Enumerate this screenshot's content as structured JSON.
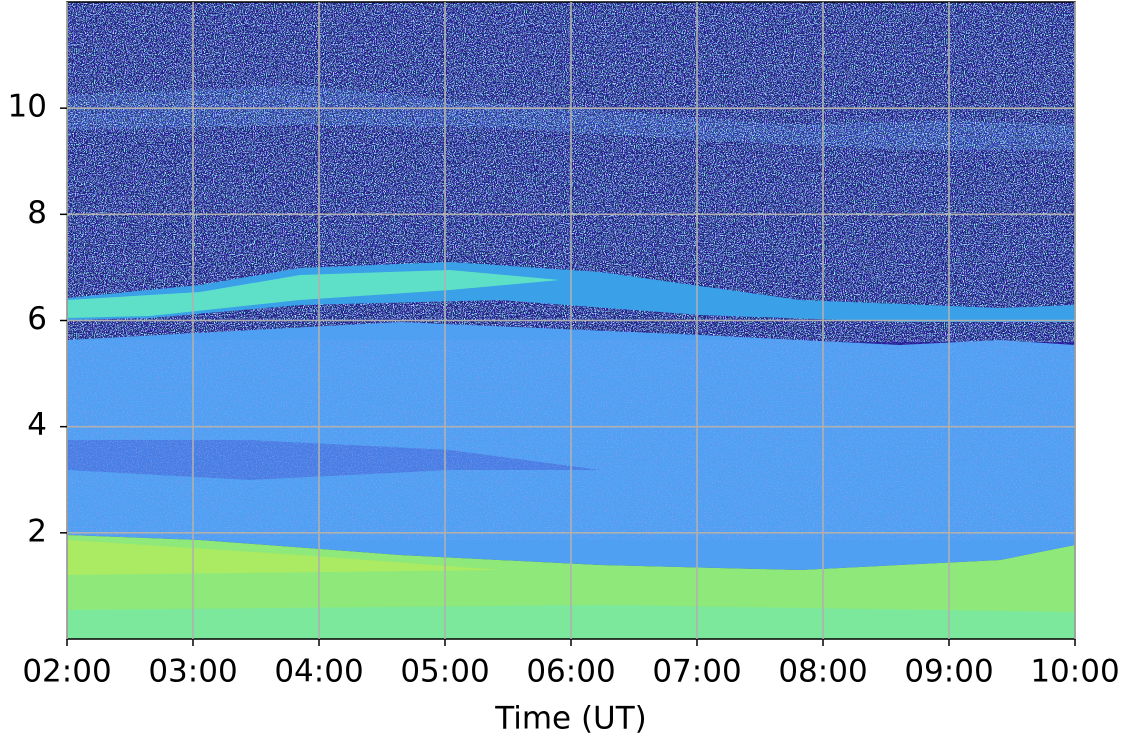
{
  "chart_data": {
    "type": "heatmap",
    "x_label": "Time (UT)",
    "xlim": [
      2,
      10
    ],
    "xticks": [
      {
        "value": 2,
        "label": "02:00"
      },
      {
        "value": 3,
        "label": "03:00"
      },
      {
        "value": 4,
        "label": "04:00"
      },
      {
        "value": 5,
        "label": "05:00"
      },
      {
        "value": 6,
        "label": "06:00"
      },
      {
        "value": 7,
        "label": "07:00"
      },
      {
        "value": 8,
        "label": "08:00"
      },
      {
        "value": 9,
        "label": "09:00"
      },
      {
        "value": 10,
        "label": "10:00"
      }
    ],
    "ylim": [
      0,
      12
    ],
    "yticks": [
      2,
      4,
      6,
      8,
      10
    ],
    "grid": true
  }
}
